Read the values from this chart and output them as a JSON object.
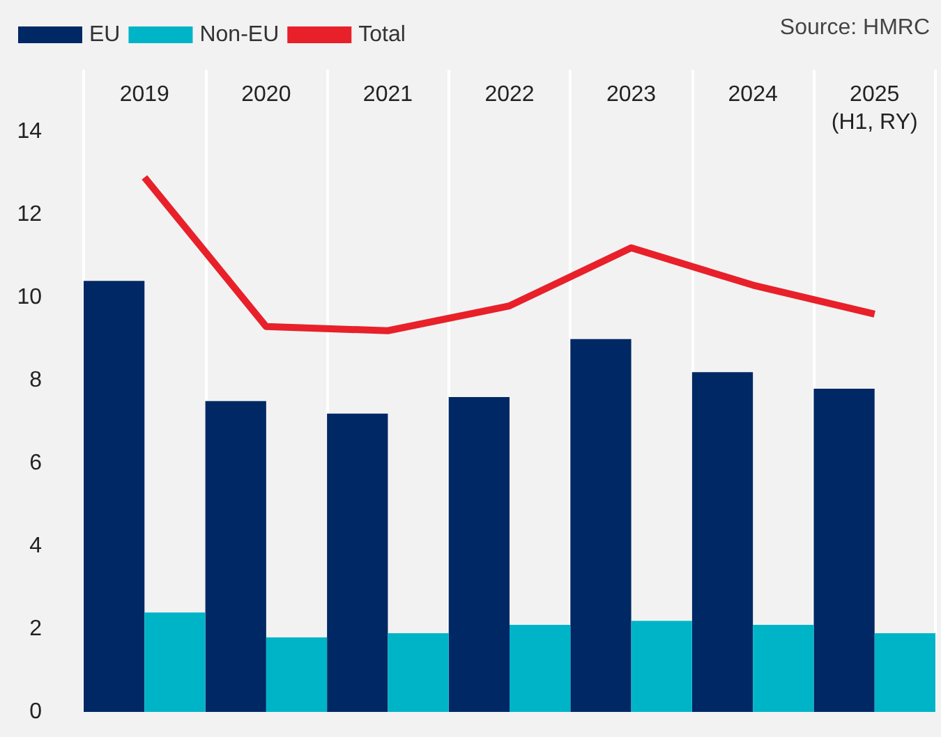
{
  "chart_data": {
    "type": "bar",
    "categories": [
      "2019",
      "2020",
      "2021",
      "2022",
      "2023",
      "2024",
      "2025\n(H1, RY)"
    ],
    "series": [
      {
        "name": "EU",
        "color": "#002864",
        "values": [
          10.4,
          7.5,
          7.2,
          7.6,
          9.0,
          8.2,
          7.8
        ]
      },
      {
        "name": "Non-EU",
        "color": "#00b4c8",
        "values": [
          2.4,
          1.8,
          1.9,
          2.1,
          2.2,
          2.1,
          1.9
        ]
      },
      {
        "name": "Total",
        "type": "line",
        "color": "#e8202a",
        "values": [
          12.9,
          9.3,
          9.2,
          9.8,
          11.2,
          10.3,
          9.6
        ]
      }
    ],
    "ylim": [
      0,
      15.5
    ],
    "yticks": [
      0,
      2,
      4,
      6,
      8,
      10,
      12,
      14
    ],
    "grid": "x",
    "legend": "top left",
    "annotations": [
      "Source: HMRC"
    ]
  }
}
